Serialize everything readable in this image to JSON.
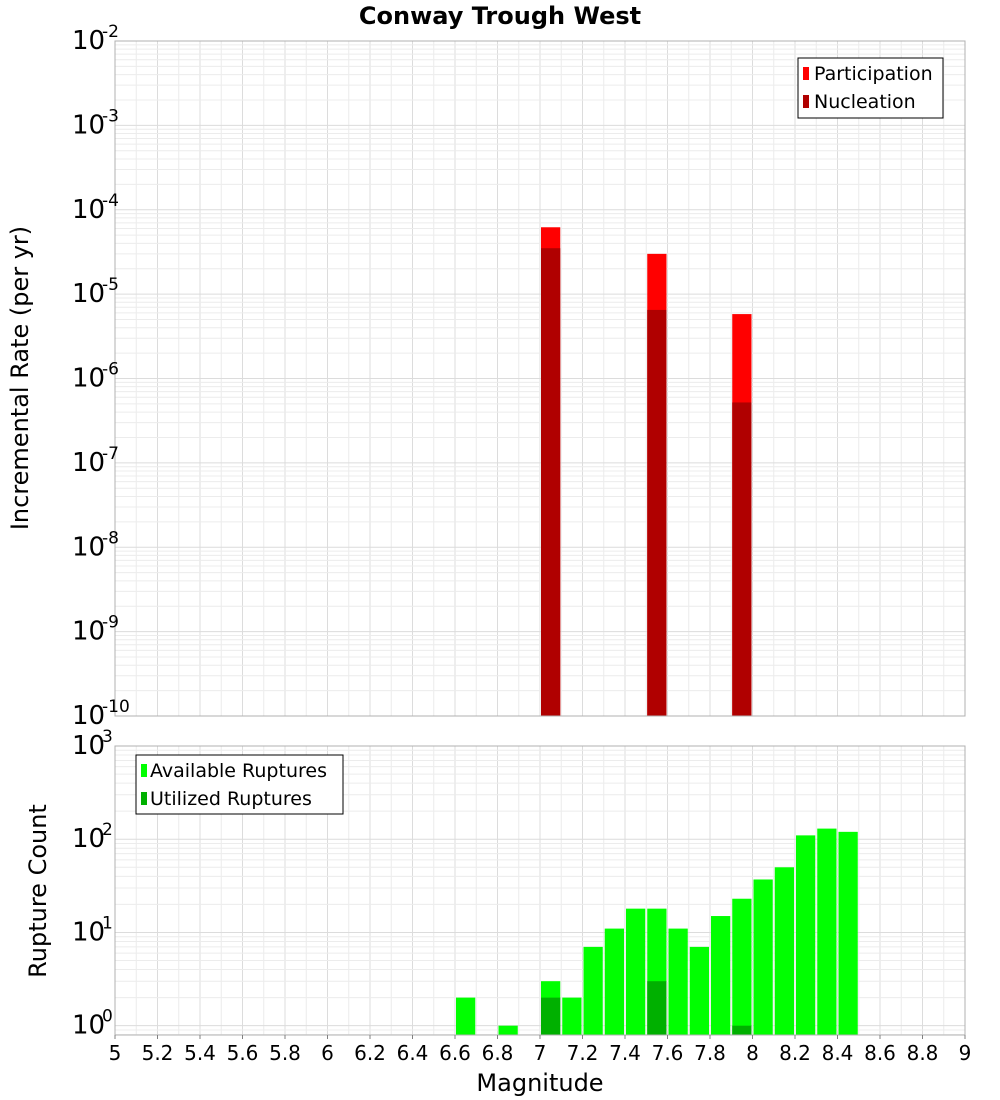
{
  "chart_data": [
    {
      "type": "bar",
      "title": "Conway Trough West",
      "xlabel": "",
      "ylabel": "Incremental Rate (per yr)",
      "yscale": "log",
      "xlim": [
        5,
        9
      ],
      "ylim_exp": [
        -10,
        -2
      ],
      "ytick_base": "10",
      "ytick_exponents": [
        "-10",
        "-9",
        "-8",
        "-7",
        "-6",
        "-5",
        "-4",
        "-3",
        "-2"
      ],
      "bin_width": 0.1,
      "legend_position": "top-right",
      "series": [
        {
          "name": "Participation",
          "color": "#ff0000",
          "x": [
            7.05,
            7.55,
            7.95
          ],
          "values": [
            6.2e-05,
            3e-05,
            5.8e-06
          ]
        },
        {
          "name": "Nucleation",
          "color": "#b00000",
          "x": [
            7.05,
            7.55,
            7.95
          ],
          "values": [
            3.5e-05,
            6.5e-06,
            5.2e-07
          ]
        }
      ]
    },
    {
      "type": "bar",
      "title": "",
      "xlabel": "Magnitude",
      "ylabel": "Rupture Count",
      "yscale": "log",
      "xlim": [
        5,
        9
      ],
      "ylim_exp": [
        -0.1,
        3
      ],
      "ytick_base": "10",
      "ytick_exponents": [
        "0",
        "1",
        "2",
        "3"
      ],
      "xticks": [
        "5",
        "5.2",
        "5.4",
        "5.6",
        "5.8",
        "6",
        "6.2",
        "6.4",
        "6.6",
        "6.8",
        "7",
        "7.2",
        "7.4",
        "7.6",
        "7.8",
        "8",
        "8.2",
        "8.4",
        "8.6",
        "8.8",
        "9"
      ],
      "bin_width": 0.1,
      "legend_position": "top-left",
      "series": [
        {
          "name": "Available Ruptures",
          "color": "#00ff00",
          "x": [
            6.65,
            6.85,
            7.05,
            7.15,
            7.25,
            7.35,
            7.45,
            7.55,
            7.65,
            7.75,
            7.85,
            7.95,
            8.05,
            8.15,
            8.25,
            8.35,
            8.45
          ],
          "values": [
            2,
            1,
            3,
            2,
            7,
            11,
            18,
            18,
            11,
            7,
            15,
            23,
            37,
            50,
            110,
            130,
            120
          ]
        },
        {
          "name": "Utilized Ruptures",
          "color": "#00b000",
          "x": [
            7.05,
            7.55,
            7.95
          ],
          "values": [
            2,
            3,
            1
          ]
        }
      ]
    }
  ]
}
